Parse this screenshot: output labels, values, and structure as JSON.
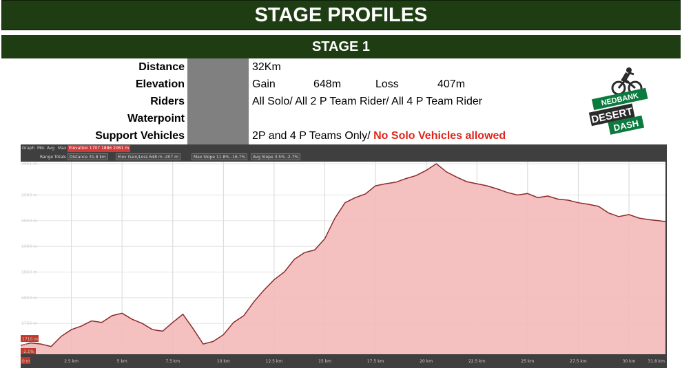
{
  "header": {
    "title": "STAGE PROFILES",
    "stage": "STAGE 1"
  },
  "info": {
    "distance_label": "Distance",
    "distance_value": "32Km",
    "elevation_label": "Elevation",
    "gain_label": "Gain",
    "gain_value": "648m",
    "loss_label": "Loss",
    "loss_value": "407m",
    "riders_label": "Riders",
    "riders_value": "All Solo/  All 2 P Team Rider/  All 4 P Team Rider",
    "waterpoint_label": "Waterpoint",
    "support_label": "Support Vehicles",
    "support_value": "2P and 4 P Teams Only/",
    "support_warning": "No Solo  Vehicles allowed"
  },
  "logo": {
    "brand": "NEDBANK",
    "line1": "DESERT",
    "line2": "DASH"
  },
  "graph_stats": {
    "graph_label": "Graph",
    "min_label": "Min",
    "avg_label": "Avg",
    "max_label": "Max",
    "elevation_stat": "Elevation  1707  1886  2061 m",
    "range_totals_label": "Range Totals",
    "distance_stat": "Distance  31.8 km",
    "gain_loss_stat": "Elev Gain/Loss  648 m  -407 m",
    "max_slope_stat": "Max Slope  11.8%  -16.7%",
    "avg_slope_stat": "Avg Slope  3.5%  -2.7%"
  },
  "markers": {
    "start_elev": "1710 m",
    "start_slope": "-2.1%",
    "start_dist": "0 m",
    "end_dist": "31.8 km"
  },
  "colors": {
    "green": "#1f3d12",
    "warning": "#e0261b",
    "fill": "#f4b9b9",
    "line": "#8b2a2a",
    "graph_bg": "#3f3f3f"
  },
  "chart_data": {
    "type": "area",
    "title": "",
    "xlabel": "",
    "ylabel": "",
    "xlim": [
      0,
      31.8
    ],
    "ylim": [
      1690,
      2065
    ],
    "y_ticks": [
      1707,
      1750,
      1800,
      1850,
      1900,
      1950,
      2000,
      2061
    ],
    "y_tick_labels": [
      "1707 m",
      "1750 m",
      "1800 m",
      "1850 m",
      "1900 m",
      "1950 m",
      "2000 m",
      "2061 m"
    ],
    "x_ticks": [
      2.5,
      5,
      7.5,
      10,
      12.5,
      15,
      17.5,
      20,
      22.5,
      25,
      27.5,
      30
    ],
    "x_tick_labels": [
      "2.5 km",
      "5 km",
      "7.5 km",
      "10 km",
      "12.5 km",
      "15 km",
      "17.5 km",
      "20 km",
      "22.5 km",
      "25 km",
      "27.5 km",
      "30 km"
    ],
    "grid": true,
    "series": [
      {
        "x": [
          0,
          0.5,
          1.0,
          1.5,
          2.0,
          2.5,
          3.0,
          3.5,
          4.0,
          4.5,
          5.0,
          5.5,
          6.0,
          6.5,
          7.0,
          7.5,
          8.0,
          8.5,
          9.0,
          9.5,
          10.0,
          10.5,
          11.0,
          11.5,
          12.0,
          12.5,
          13.0,
          13.5,
          14.0,
          14.5,
          15.0,
          15.5,
          16.0,
          16.5,
          17.0,
          17.5,
          18.0,
          18.5,
          19.0,
          19.5,
          20.0,
          20.5,
          21.0,
          21.5,
          22.0,
          22.5,
          23.0,
          23.5,
          24.0,
          24.5,
          25.0,
          25.5,
          26.0,
          26.5,
          27.0,
          27.5,
          28.0,
          28.5,
          29.0,
          29.5,
          30.0,
          30.5,
          31.0,
          31.5,
          31.8
        ],
        "y": [
          1707,
          1712,
          1710,
          1705,
          1725,
          1738,
          1745,
          1755,
          1752,
          1765,
          1770,
          1758,
          1750,
          1738,
          1735,
          1752,
          1768,
          1740,
          1710,
          1715,
          1728,
          1752,
          1765,
          1792,
          1815,
          1835,
          1850,
          1875,
          1888,
          1893,
          1915,
          1955,
          1985,
          1995,
          2002,
          2018,
          2022,
          2025,
          2032,
          2038,
          2048,
          2061,
          2045,
          2035,
          2026,
          2022,
          2018,
          2012,
          2005,
          2000,
          2003,
          1995,
          1998,
          1992,
          1990,
          1985,
          1982,
          1978,
          1965,
          1958,
          1962,
          1955,
          1952,
          1950,
          1948
        ]
      }
    ]
  }
}
